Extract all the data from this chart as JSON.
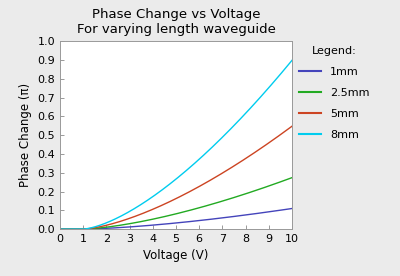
{
  "title_line1": "Phase Change vs Voltage",
  "title_line2": "For varying length waveguide",
  "xlabel": "Voltage (V)",
  "ylabel": "Phase Change (π)",
  "xlim": [
    0,
    10
  ],
  "ylim": [
    0,
    1.0
  ],
  "xticks": [
    0,
    1,
    2,
    3,
    4,
    5,
    6,
    7,
    8,
    9,
    10
  ],
  "yticks": [
    0.0,
    0.1,
    0.2,
    0.3,
    0.4,
    0.5,
    0.6,
    0.7,
    0.8,
    0.9,
    1.0
  ],
  "legend_title": "Legend:",
  "series": [
    {
      "label": "1mm",
      "color": "#4444bb",
      "scale": 0.00406
    },
    {
      "label": "2.5mm",
      "color": "#22aa22",
      "scale": 0.01015
    },
    {
      "label": "5mm",
      "color": "#cc4422",
      "scale": 0.0203
    },
    {
      "label": "8mm",
      "color": "#00ccee",
      "scale": 0.0333
    }
  ],
  "vthreshold": 1.0,
  "power": 1.5,
  "background_color": "#ebebeb",
  "plot_bg": "#ffffff",
  "title_fontsize": 9.5,
  "label_fontsize": 8.5,
  "tick_fontsize": 8,
  "legend_fontsize": 8
}
